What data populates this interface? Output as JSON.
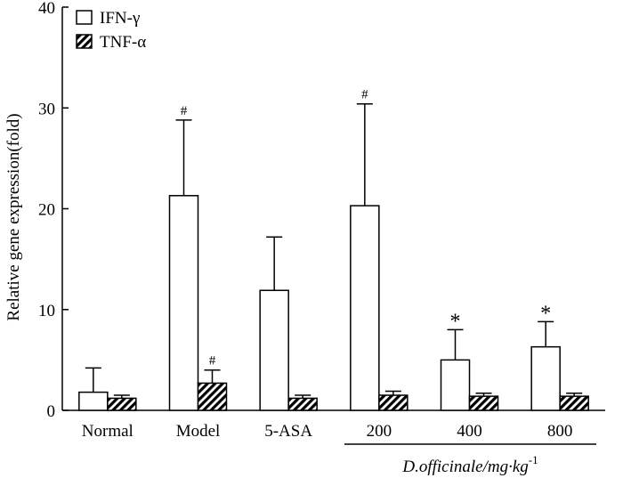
{
  "chart_data": {
    "type": "bar",
    "title": "",
    "ylabel": "Relative gene expression(fold)",
    "xlabel": "",
    "ylim": [
      0,
      40
    ],
    "yticks": [
      0,
      10,
      20,
      30,
      40
    ],
    "categories": [
      "Normal",
      "Model",
      "5-ASA",
      "200",
      "400",
      "800"
    ],
    "group_label": "D.officinale/mg·kg",
    "group_label_superscript": "-1",
    "group_categories": [
      "200",
      "400",
      "800"
    ],
    "legend_position": "top-left",
    "series": [
      {
        "name": "IFN-γ",
        "pattern": "open",
        "values": [
          1.8,
          21.3,
          11.9,
          20.3,
          5.0,
          6.3
        ],
        "errors": [
          2.4,
          7.5,
          5.3,
          10.1,
          3.0,
          2.5
        ],
        "annotations": [
          "",
          "#",
          "",
          "#",
          "*",
          "*"
        ]
      },
      {
        "name": "TNF-α",
        "pattern": "hatched",
        "values": [
          1.2,
          2.7,
          1.2,
          1.5,
          1.4,
          1.4
        ],
        "errors": [
          0.3,
          1.3,
          0.3,
          0.4,
          0.3,
          0.3
        ],
        "annotations": [
          "",
          "#",
          "",
          "",
          "",
          ""
        ]
      }
    ]
  }
}
